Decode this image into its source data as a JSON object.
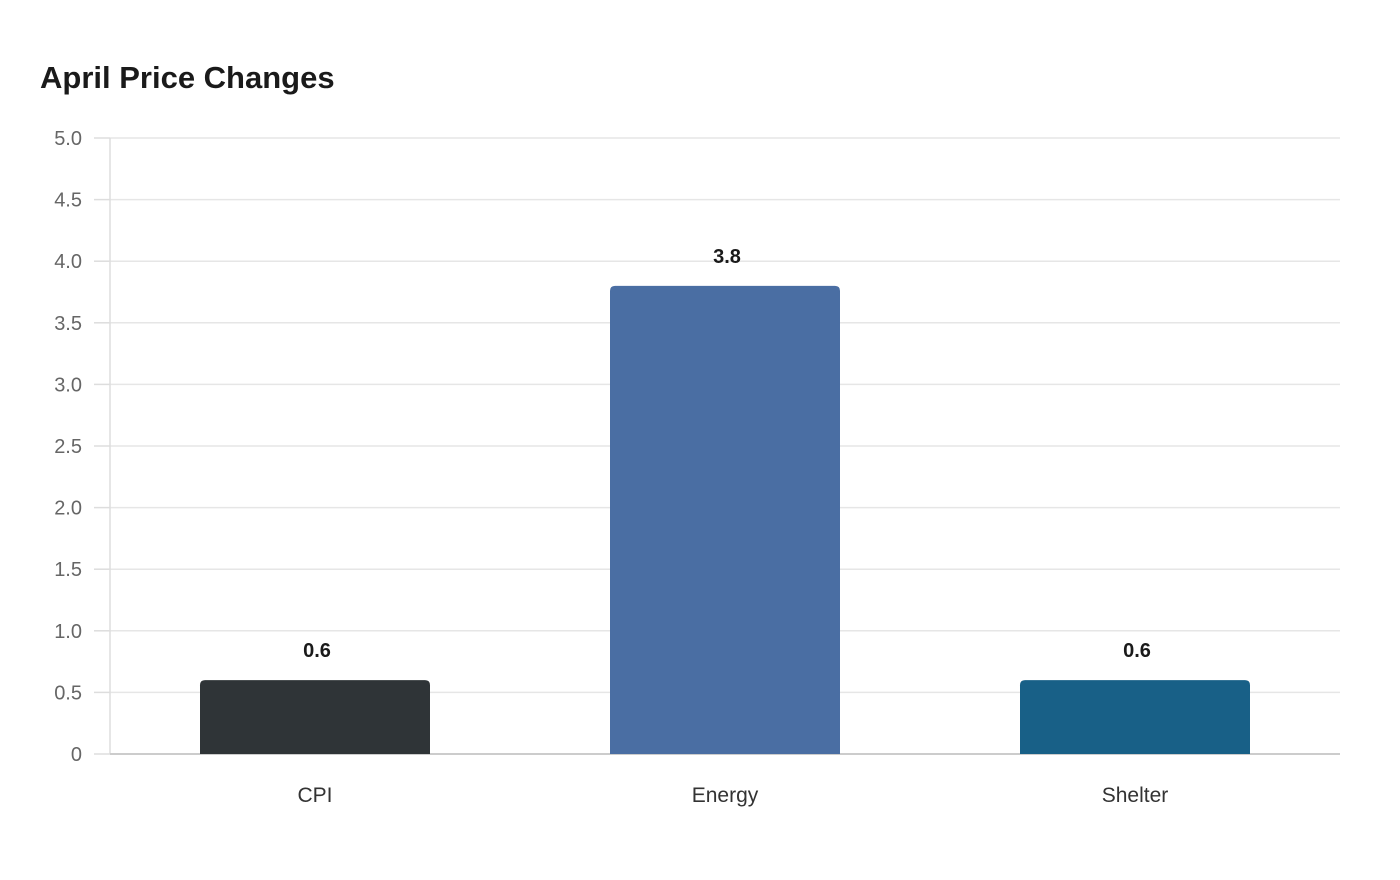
{
  "chart_data": {
    "type": "bar",
    "title": "April Price Changes",
    "xlabel": "",
    "ylabel": "",
    "categories": [
      "CPI",
      "Energy",
      "Shelter"
    ],
    "values": [
      0.6,
      3.8,
      0.6
    ],
    "data_labels": [
      "0.6",
      "3.8",
      "0.6"
    ],
    "colors": [
      "#2f3437",
      "#4a6ea3",
      "#186087"
    ],
    "ylim": [
      0,
      5
    ],
    "yticks": [
      0,
      0.5,
      1,
      1.5,
      2,
      2.5,
      3,
      3.5,
      4,
      4.5,
      5
    ],
    "ytick_labels": [
      "0",
      "0.5",
      "1.0",
      "1.5",
      "2.0",
      "2.5",
      "3.0",
      "3.5",
      "4.0",
      "4.5",
      "5.0"
    ],
    "grid": true,
    "legend": "none"
  }
}
